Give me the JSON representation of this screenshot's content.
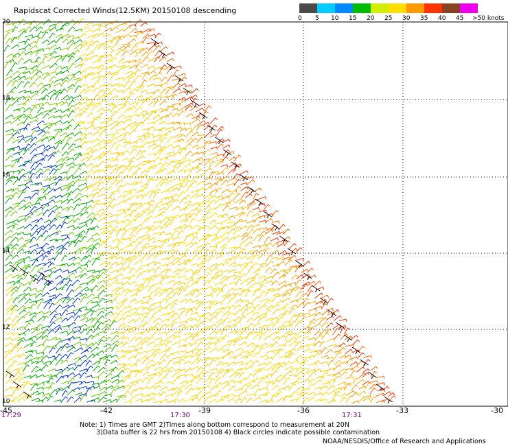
{
  "title": "Rapidscat Corrected Winds(12.5KM) 20150108 descending",
  "colorbar": {
    "labels": [
      "0",
      "5",
      "10",
      "15",
      "20",
      "25",
      "30",
      "35",
      "40",
      "45",
      ">50 knots"
    ],
    "colors": [
      "#4a4a4a",
      "#00ccff",
      "#0088ff",
      "#00bb00",
      "#d0ee00",
      "#ffdd00",
      "#ff9900",
      "#ff3300",
      "#884422",
      "#ee00ee",
      "#7700aa"
    ]
  },
  "map": {
    "lat_labels": [
      "20",
      "18",
      "16",
      "14",
      "12",
      "10"
    ],
    "lon_labels": [
      "-45",
      "-42",
      "-39",
      "-36",
      "-33",
      "-30"
    ],
    "time_labels": [
      "17:29",
      "17:30",
      "17:31"
    ]
  },
  "notes": {
    "line1": "Note: 1) Times are GMT 2)Times along bottom correspond to measurement at 20N",
    "line2": "3)Data buffer is 22 hrs from 20150108 4) Black circles indicate possible contamination"
  },
  "credit": "NOAA/NESDIS/Office of Research and Applications"
}
